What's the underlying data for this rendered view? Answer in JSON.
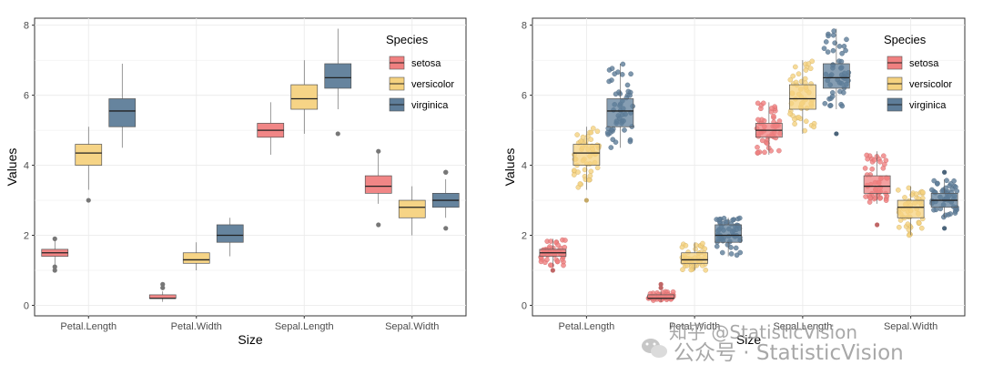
{
  "chart_data": [
    {
      "type": "box",
      "title": "",
      "xlabel": "Size",
      "ylabel": "Values",
      "ylim": [
        -0.3,
        8.2
      ],
      "yticks": [
        0,
        2,
        4,
        6,
        8
      ],
      "categories": [
        "Petal.Length",
        "Petal.Width",
        "Sepal.Length",
        "Sepal.Width"
      ],
      "legend": {
        "title": "Species",
        "position": "top-right"
      },
      "grid": true,
      "jitter_points": false,
      "series": [
        {
          "name": "setosa",
          "color": "#f08080",
          "boxes": [
            {
              "min": 1.1,
              "q1": 1.4,
              "median": 1.5,
              "q3": 1.6,
              "max": 1.9,
              "outliers": [
                1.0,
                1.1,
                1.9
              ]
            },
            {
              "min": 0.1,
              "q1": 0.2,
              "median": 0.2,
              "q3": 0.3,
              "max": 0.4,
              "outliers": [
                0.5,
                0.6
              ]
            },
            {
              "min": 4.3,
              "q1": 4.8,
              "median": 5.0,
              "q3": 5.2,
              "max": 5.8,
              "outliers": []
            },
            {
              "min": 2.9,
              "q1": 3.2,
              "median": 3.4,
              "q3": 3.7,
              "max": 4.4,
              "outliers": [
                2.3,
                4.4
              ]
            }
          ]
        },
        {
          "name": "versicolor",
          "color": "#f5d27f",
          "boxes": [
            {
              "min": 3.3,
              "q1": 4.0,
              "median": 4.35,
              "q3": 4.6,
              "max": 5.1,
              "outliers": [
                3.0
              ]
            },
            {
              "min": 1.0,
              "q1": 1.2,
              "median": 1.3,
              "q3": 1.5,
              "max": 1.8,
              "outliers": []
            },
            {
              "min": 4.9,
              "q1": 5.6,
              "median": 5.9,
              "q3": 6.3,
              "max": 7.0,
              "outliers": []
            },
            {
              "min": 2.0,
              "q1": 2.5,
              "median": 2.8,
              "q3": 3.0,
              "max": 3.4,
              "outliers": []
            }
          ]
        },
        {
          "name": "virginica",
          "color": "#5e7d99",
          "boxes": [
            {
              "min": 4.5,
              "q1": 5.1,
              "median": 5.55,
              "q3": 5.9,
              "max": 6.9,
              "outliers": []
            },
            {
              "min": 1.4,
              "q1": 1.8,
              "median": 2.0,
              "q3": 2.3,
              "max": 2.5,
              "outliers": []
            },
            {
              "min": 5.6,
              "q1": 6.2,
              "median": 6.5,
              "q3": 6.9,
              "max": 7.9,
              "outliers": [
                4.9
              ]
            },
            {
              "min": 2.5,
              "q1": 2.8,
              "median": 3.0,
              "q3": 3.2,
              "max": 3.6,
              "outliers": [
                2.2,
                3.8,
                3.8
              ]
            }
          ]
        }
      ]
    },
    {
      "type": "box",
      "title": "",
      "xlabel": "Size",
      "ylabel": "Values",
      "ylim": [
        -0.3,
        8.2
      ],
      "yticks": [
        0,
        2,
        4,
        6,
        8
      ],
      "categories": [
        "Petal.Length",
        "Petal.Width",
        "Sepal.Length",
        "Sepal.Width"
      ],
      "legend": {
        "title": "Species",
        "position": "top-right"
      },
      "grid": true,
      "jitter_points": true,
      "series": [
        {
          "name": "setosa",
          "color": "#f08080",
          "boxes": [
            {
              "min": 1.1,
              "q1": 1.4,
              "median": 1.5,
              "q3": 1.6,
              "max": 1.9,
              "outliers": [
                1.0
              ]
            },
            {
              "min": 0.1,
              "q1": 0.2,
              "median": 0.2,
              "q3": 0.3,
              "max": 0.4,
              "outliers": [
                0.5,
                0.6
              ]
            },
            {
              "min": 4.3,
              "q1": 4.8,
              "median": 5.0,
              "q3": 5.2,
              "max": 5.8,
              "outliers": []
            },
            {
              "min": 2.9,
              "q1": 3.2,
              "median": 3.4,
              "q3": 3.7,
              "max": 4.4,
              "outliers": [
                2.3
              ]
            }
          ]
        },
        {
          "name": "versicolor",
          "color": "#f5d27f",
          "boxes": [
            {
              "min": 3.3,
              "q1": 4.0,
              "median": 4.35,
              "q3": 4.6,
              "max": 5.1,
              "outliers": [
                3.0
              ]
            },
            {
              "min": 1.0,
              "q1": 1.2,
              "median": 1.3,
              "q3": 1.5,
              "max": 1.8,
              "outliers": []
            },
            {
              "min": 4.9,
              "q1": 5.6,
              "median": 5.9,
              "q3": 6.3,
              "max": 7.0,
              "outliers": []
            },
            {
              "min": 2.0,
              "q1": 2.5,
              "median": 2.8,
              "q3": 3.0,
              "max": 3.4,
              "outliers": []
            }
          ]
        },
        {
          "name": "virginica",
          "color": "#5e7d99",
          "boxes": [
            {
              "min": 4.5,
              "q1": 5.1,
              "median": 5.55,
              "q3": 5.9,
              "max": 6.9,
              "outliers": []
            },
            {
              "min": 1.4,
              "q1": 1.8,
              "median": 2.0,
              "q3": 2.3,
              "max": 2.5,
              "outliers": []
            },
            {
              "min": 5.6,
              "q1": 6.2,
              "median": 6.5,
              "q3": 6.9,
              "max": 7.9,
              "outliers": [
                4.9
              ]
            },
            {
              "min": 2.5,
              "q1": 2.8,
              "median": 3.0,
              "q3": 3.2,
              "max": 3.6,
              "outliers": [
                2.2,
                3.8
              ]
            }
          ]
        }
      ]
    }
  ],
  "watermark": {
    "line1": "知乎 @StatisticVision",
    "line2": "公众号 · StatisticVision"
  }
}
